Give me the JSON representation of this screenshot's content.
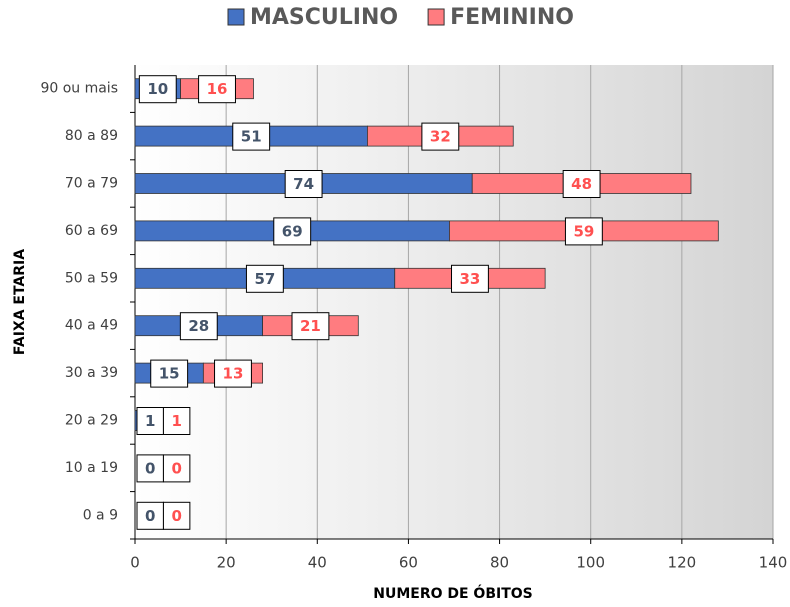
{
  "chart_data": {
    "type": "stacked-barh",
    "categories": [
      "0 a 9",
      "10 a 19",
      "20 a 29",
      "30 a 39",
      "40 a 49",
      "50 a 59",
      "60 a 69",
      "70 a 79",
      "80 a 89",
      "90 ou mais"
    ],
    "series": [
      {
        "name": "MASCULINO",
        "color": "#4472c4",
        "label_color": "#44546a",
        "values": [
          0,
          0,
          1,
          15,
          28,
          57,
          69,
          74,
          51,
          10
        ]
      },
      {
        "name": "FEMININO",
        "color": "#ff7c80",
        "label_color": "#ff5050",
        "values": [
          0,
          0,
          1,
          13,
          21,
          33,
          59,
          48,
          32,
          16
        ]
      }
    ],
    "x_label": "NUMERO DE ÓBITOS",
    "y_label": "FAIXA ETARIA",
    "xlim": [
      0,
      140
    ],
    "xticks": [
      0,
      20,
      40,
      60,
      80,
      100,
      120,
      140
    ],
    "grid": true,
    "legend": "top"
  }
}
